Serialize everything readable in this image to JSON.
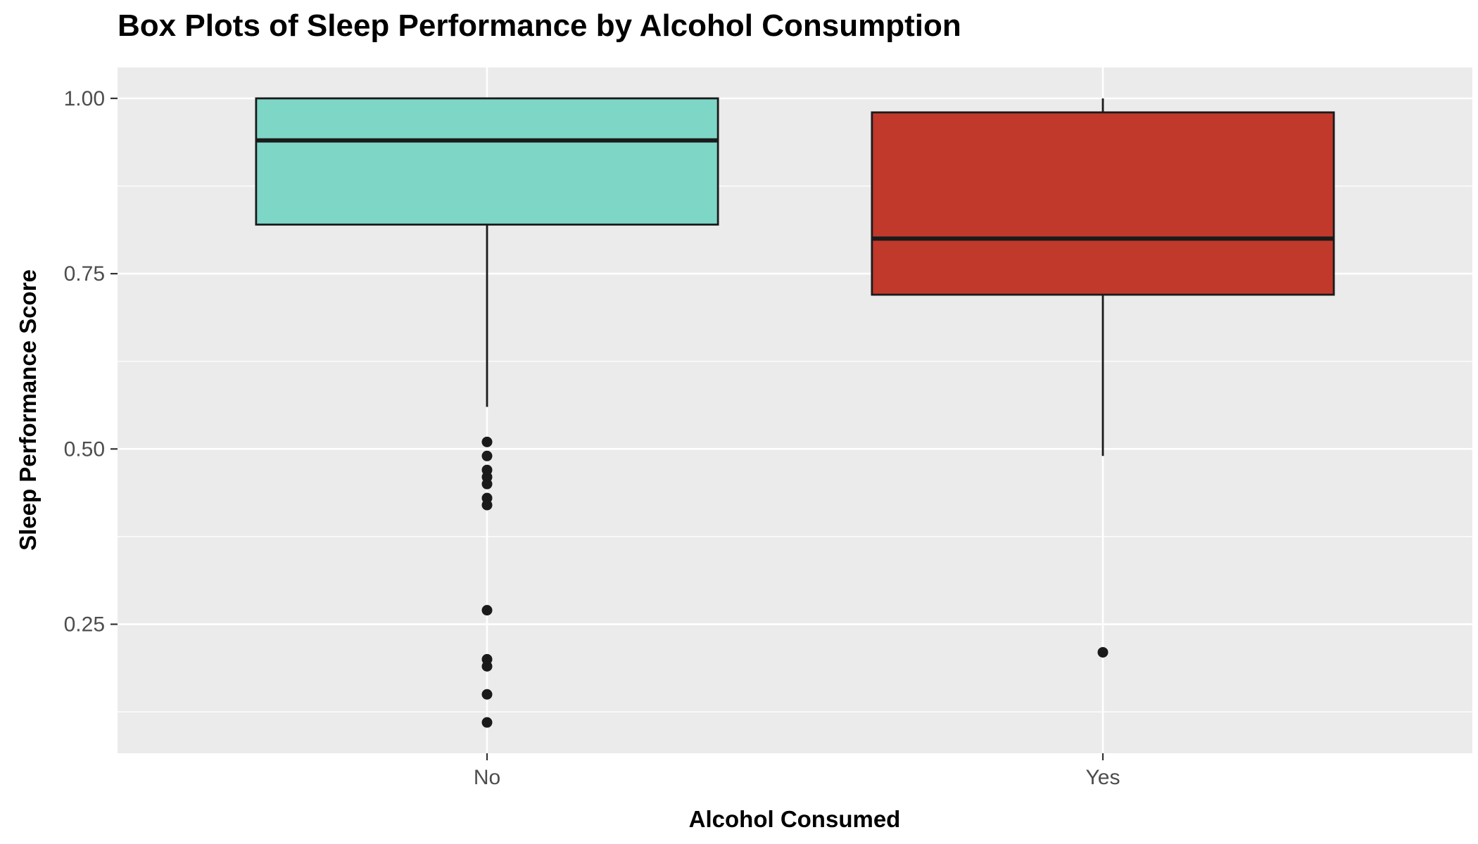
{
  "page": {
    "background": "#FFFFFF"
  },
  "chart_data": {
    "type": "boxplot",
    "title": "Box Plots of Sleep Performance by Alcohol Consumption",
    "xlabel": "Alcohol Consumed",
    "ylabel": "Sleep Performance Score",
    "categories": [
      "No",
      "Yes"
    ],
    "series": [
      {
        "category": "No",
        "color": "#7ED6C7",
        "whisker_low": 0.56,
        "q1": 0.82,
        "median": 0.94,
        "q3": 1.0,
        "whisker_high": 1.0,
        "outliers": [
          0.51,
          0.49,
          0.47,
          0.46,
          0.45,
          0.43,
          0.42,
          0.27,
          0.2,
          0.19,
          0.15,
          0.11
        ]
      },
      {
        "category": "Yes",
        "color": "#C0392B",
        "whisker_low": 0.49,
        "q1": 0.72,
        "median": 0.8,
        "q3": 0.98,
        "whisker_high": 1.0,
        "outliers": [
          0.21
        ]
      }
    ],
    "y_ticks": [
      1.0,
      0.75,
      0.5,
      0.25
    ],
    "y_tick_labels": [
      "1.00",
      "0.75",
      "0.50",
      "0.25"
    ],
    "y_minor_ticks": [
      0.875,
      0.625,
      0.375,
      0.125
    ],
    "ylim": [
      0.066,
      1.044
    ],
    "legend": "none",
    "grid": true,
    "style": {
      "panel_background": "#EBEBEB",
      "grid_major_color": "#FFFFFF",
      "grid_minor_color": "#FFFFFF",
      "box_stroke": "#1A1A1A",
      "outlier_color": "#1A1A1A",
      "tick_color": "#333333",
      "axis_text_color": "#4D4D4D",
      "title_color": "#000000"
    }
  }
}
